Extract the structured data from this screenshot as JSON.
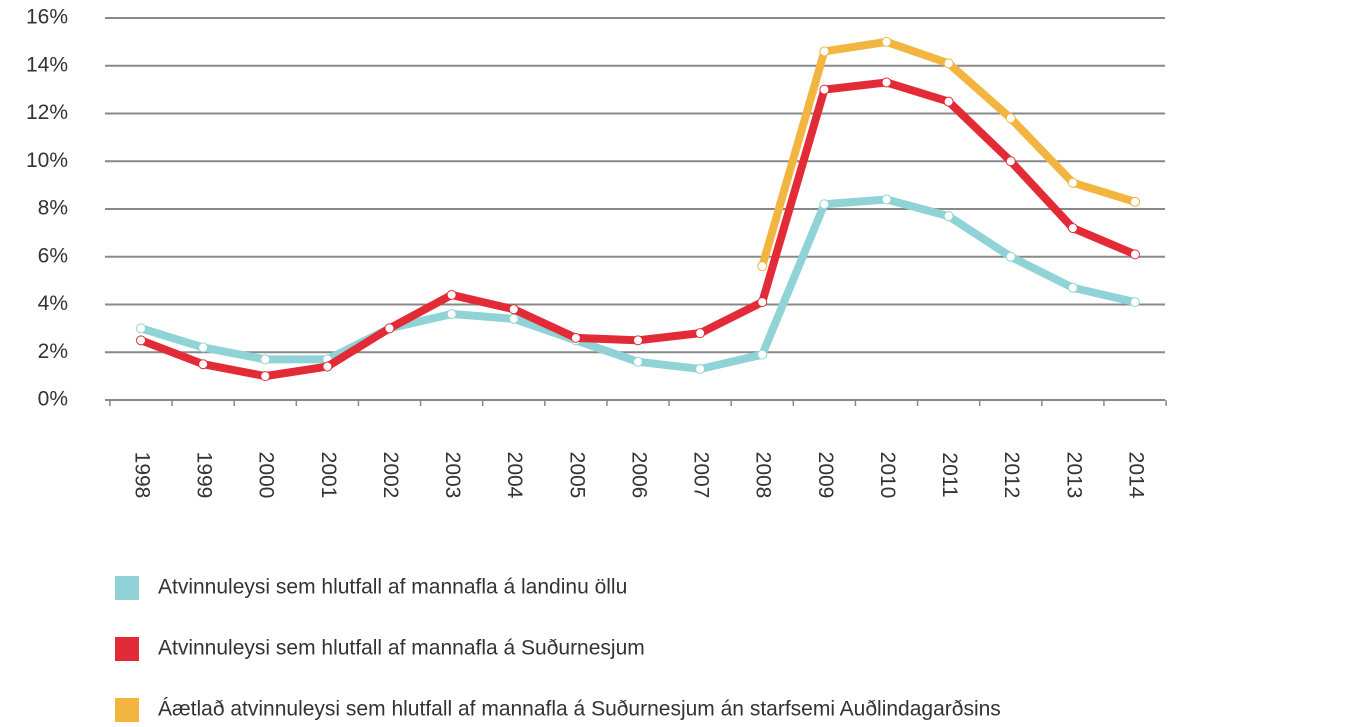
{
  "chart_data": {
    "type": "line",
    "categories": [
      "1998",
      "1999",
      "2000",
      "2001",
      "2002",
      "2003",
      "2004",
      "2005",
      "2006",
      "2007",
      "2008",
      "2009",
      "2010",
      "2011",
      "2012",
      "2013",
      "2014"
    ],
    "series": [
      {
        "name": "Atvinnuleysi sem hlutfall af mannafla á landinu öllu",
        "color": "#8fd3d6",
        "values": [
          3.0,
          2.2,
          1.7,
          1.7,
          3.0,
          3.6,
          3.4,
          2.5,
          1.6,
          1.3,
          1.9,
          8.2,
          8.4,
          7.7,
          6.0,
          4.7,
          4.1
        ]
      },
      {
        "name": "Atvinnuleysi sem hlutfall af mannafla á Suðurnesjum",
        "color": "#e22b36",
        "values": [
          2.5,
          1.5,
          1.0,
          1.4,
          3.0,
          4.4,
          3.8,
          2.6,
          2.5,
          2.8,
          4.1,
          13.0,
          13.3,
          12.5,
          10.0,
          7.2,
          6.1
        ]
      },
      {
        "name": "Áætlað atvinnuleysi sem hlutfall af mannafla á Suðurnesjum án starfsemi Auðlindagarðsins",
        "color": "#f2b540",
        "values": [
          null,
          null,
          null,
          null,
          null,
          null,
          null,
          null,
          null,
          null,
          5.6,
          14.6,
          15.0,
          14.1,
          11.8,
          9.1,
          8.3
        ]
      }
    ],
    "ylim": [
      0,
      16
    ],
    "yticks": [
      {
        "value": 0,
        "label": "0%"
      },
      {
        "value": 2,
        "label": "2%"
      },
      {
        "value": 4,
        "label": "4%"
      },
      {
        "value": 6,
        "label": "6%"
      },
      {
        "value": 8,
        "label": "8%"
      },
      {
        "value": 10,
        "label": "10%"
      },
      {
        "value": 12,
        "label": "12%"
      },
      {
        "value": 14,
        "label": "14%"
      },
      {
        "value": 16,
        "label": "16%"
      }
    ],
    "grid": true
  }
}
